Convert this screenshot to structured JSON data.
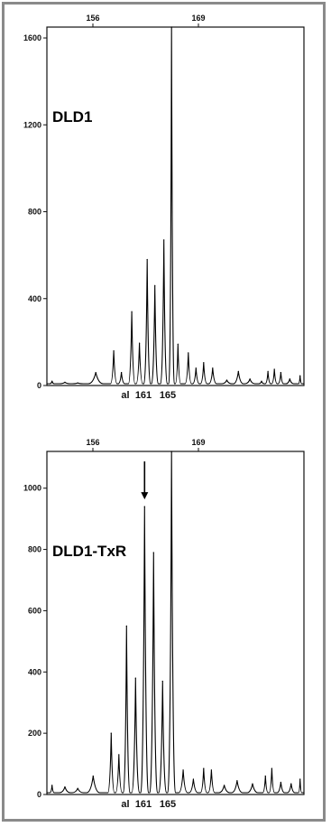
{
  "chart_data": [
    {
      "type": "line",
      "label": "DLD1",
      "top_axis_ticks": [
        156,
        169
      ],
      "y_ticks": [
        0,
        400,
        800,
        1200,
        1600
      ],
      "ylim": [
        0,
        1650
      ],
      "bottom_labels": [
        "al",
        "161",
        "165"
      ],
      "peaks": [
        {
          "x": 0.02,
          "y": 20
        },
        {
          "x": 0.07,
          "y": 15
        },
        {
          "x": 0.12,
          "y": 12
        },
        {
          "x": 0.19,
          "y": 60
        },
        {
          "x": 0.26,
          "y": 160
        },
        {
          "x": 0.29,
          "y": 60
        },
        {
          "x": 0.33,
          "y": 340
        },
        {
          "x": 0.36,
          "y": 195
        },
        {
          "x": 0.39,
          "y": 580
        },
        {
          "x": 0.42,
          "y": 460
        },
        {
          "x": 0.455,
          "y": 670
        },
        {
          "x": 0.485,
          "y": 1650
        },
        {
          "x": 0.51,
          "y": 190
        },
        {
          "x": 0.55,
          "y": 150
        },
        {
          "x": 0.58,
          "y": 80
        },
        {
          "x": 0.61,
          "y": 105
        },
        {
          "x": 0.645,
          "y": 80
        },
        {
          "x": 0.7,
          "y": 25
        },
        {
          "x": 0.745,
          "y": 65
        },
        {
          "x": 0.79,
          "y": 30
        },
        {
          "x": 0.835,
          "y": 20
        },
        {
          "x": 0.86,
          "y": 65
        },
        {
          "x": 0.885,
          "y": 75
        },
        {
          "x": 0.91,
          "y": 60
        },
        {
          "x": 0.945,
          "y": 30
        },
        {
          "x": 0.985,
          "y": 45
        }
      ]
    },
    {
      "type": "line",
      "label": "DLD1-TxR",
      "top_axis_ticks": [
        156,
        169
      ],
      "y_ticks": [
        0,
        200,
        400,
        600,
        800,
        1000
      ],
      "ylim": [
        0,
        1120
      ],
      "bottom_labels": [
        "al",
        "161",
        "165"
      ],
      "arrow_at": "161",
      "peaks": [
        {
          "x": 0.02,
          "y": 30
        },
        {
          "x": 0.07,
          "y": 25
        },
        {
          "x": 0.12,
          "y": 20
        },
        {
          "x": 0.18,
          "y": 60
        },
        {
          "x": 0.25,
          "y": 200
        },
        {
          "x": 0.28,
          "y": 130
        },
        {
          "x": 0.31,
          "y": 550
        },
        {
          "x": 0.345,
          "y": 380
        },
        {
          "x": 0.38,
          "y": 940
        },
        {
          "x": 0.415,
          "y": 790
        },
        {
          "x": 0.45,
          "y": 370
        },
        {
          "x": 0.485,
          "y": 1120
        },
        {
          "x": 0.53,
          "y": 80
        },
        {
          "x": 0.57,
          "y": 50
        },
        {
          "x": 0.61,
          "y": 85
        },
        {
          "x": 0.64,
          "y": 80
        },
        {
          "x": 0.69,
          "y": 30
        },
        {
          "x": 0.74,
          "y": 45
        },
        {
          "x": 0.8,
          "y": 35
        },
        {
          "x": 0.85,
          "y": 60
        },
        {
          "x": 0.875,
          "y": 85
        },
        {
          "x": 0.91,
          "y": 40
        },
        {
          "x": 0.95,
          "y": 35
        },
        {
          "x": 0.985,
          "y": 50
        }
      ]
    }
  ]
}
